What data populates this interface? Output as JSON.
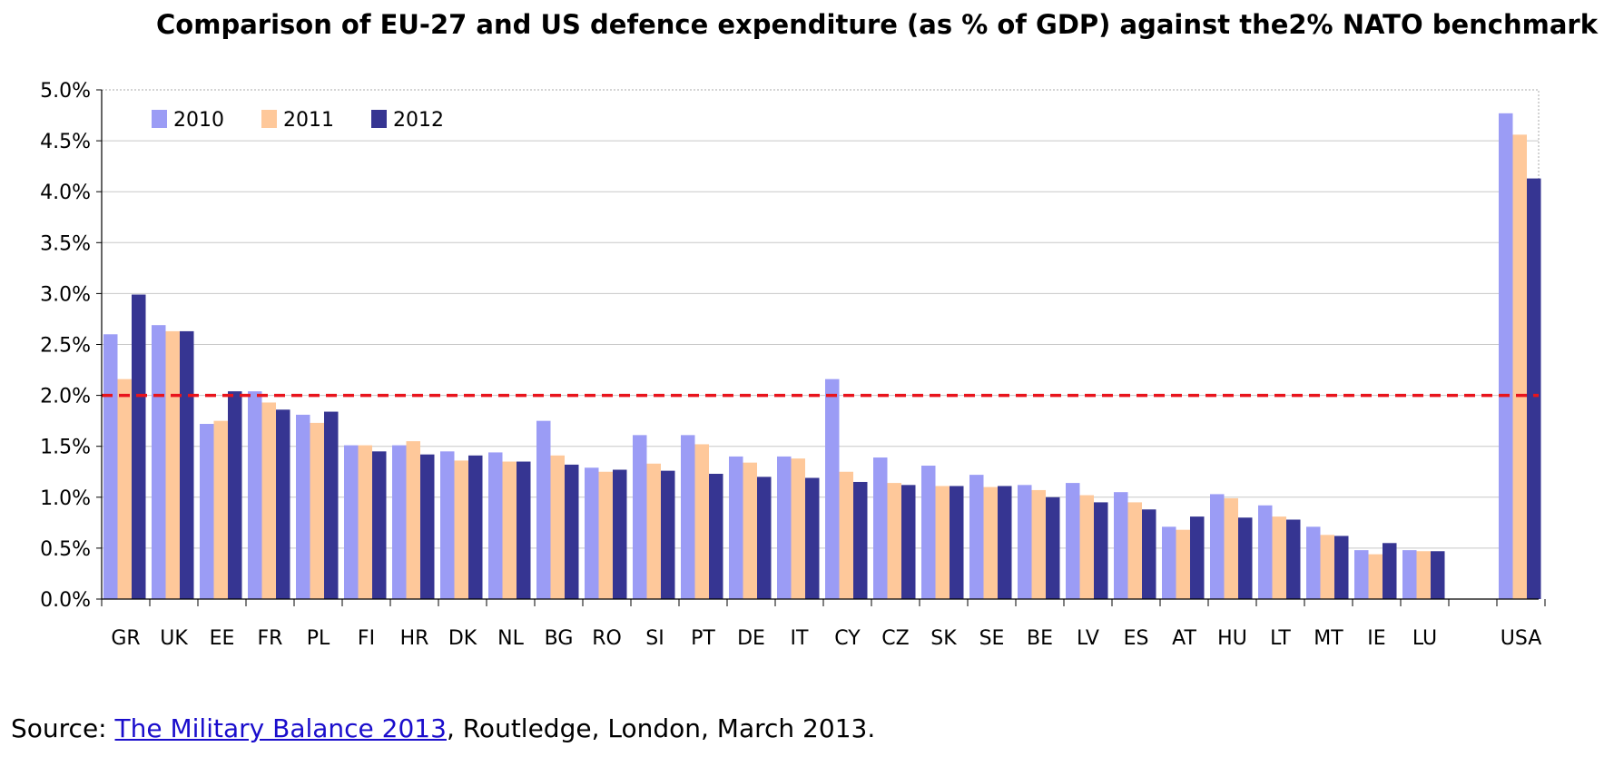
{
  "chart_data": {
    "type": "bar",
    "title": "Comparison of EU-27 and US defence expenditure (as % of GDP) against the2% NATO benchmark",
    "xlabel": "",
    "ylabel": "",
    "ylim": [
      0,
      5
    ],
    "y_ticks": [
      "0.0%",
      "0.5%",
      "1.0%",
      "1.5%",
      "2.0%",
      "2.5%",
      "3.0%",
      "3.5%",
      "4.0%",
      "4.5%",
      "5.0%"
    ],
    "grid": true,
    "legend_position": "top-left",
    "benchmark": {
      "value": 2.0,
      "color": "#e8141c",
      "style": "dashed"
    },
    "categories": [
      "GR",
      "UK",
      "EE",
      "FR",
      "PL",
      "FI",
      "HR",
      "DK",
      "NL",
      "BG",
      "RO",
      "SI",
      "PT",
      "DE",
      "IT",
      "CY",
      "CZ",
      "SK",
      "SE",
      "BE",
      "LV",
      "ES",
      "AT",
      "HU",
      "LT",
      "MT",
      "IE",
      "LU",
      "",
      "USA"
    ],
    "series": [
      {
        "name": "2010",
        "color": "#9b9cf5",
        "values": [
          2.6,
          2.69,
          1.72,
          2.04,
          1.81,
          1.51,
          1.51,
          1.45,
          1.44,
          1.75,
          1.29,
          1.61,
          1.61,
          1.4,
          1.4,
          2.16,
          1.39,
          1.31,
          1.22,
          1.12,
          1.14,
          1.05,
          0.71,
          1.03,
          0.92,
          0.71,
          0.48,
          0.48,
          null,
          4.77
        ]
      },
      {
        "name": "2011",
        "color": "#fec89a",
        "values": [
          2.16,
          2.63,
          1.75,
          1.93,
          1.73,
          1.51,
          1.55,
          1.36,
          1.35,
          1.41,
          1.25,
          1.33,
          1.52,
          1.34,
          1.38,
          1.25,
          1.14,
          1.11,
          1.1,
          1.07,
          1.02,
          0.95,
          0.68,
          0.99,
          0.81,
          0.63,
          0.44,
          0.47,
          null,
          4.56
        ]
      },
      {
        "name": "2012",
        "color": "#363592",
        "values": [
          2.99,
          2.63,
          2.04,
          1.86,
          1.84,
          1.45,
          1.42,
          1.41,
          1.35,
          1.32,
          1.27,
          1.26,
          1.23,
          1.2,
          1.19,
          1.15,
          1.12,
          1.11,
          1.11,
          1.0,
          0.95,
          0.88,
          0.81,
          0.8,
          0.78,
          0.62,
          0.55,
          0.47,
          null,
          4.13
        ]
      }
    ]
  },
  "source": {
    "prefix": "Source: ",
    "link_text": "The Military Balance 2013",
    "suffix": ", Routledge, London, March 2013."
  }
}
